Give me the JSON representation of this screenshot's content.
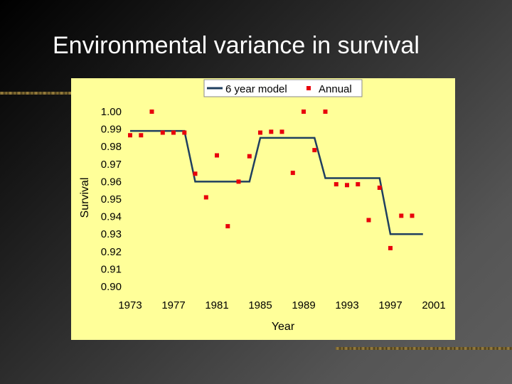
{
  "slide": {
    "title": "Environmental variance in survival"
  },
  "colors": {
    "panel_background": "#ffff99",
    "model_line": "#1f3f5f",
    "annual_marker": "#e8000b",
    "slide_background": "#2a2a2a",
    "title_text": "#ffffff"
  },
  "chart_data": {
    "type": "line",
    "title": "",
    "xlabel": "Year",
    "ylabel": "Survival",
    "xlim": [
      1973,
      2001
    ],
    "ylim": [
      0.9,
      1.0
    ],
    "x_ticks": [
      "1973",
      "1977",
      "1981",
      "1985",
      "1989",
      "1993",
      "1997",
      "2001"
    ],
    "y_ticks": [
      "1.00",
      "0.99",
      "0.98",
      "0.97",
      "0.96",
      "0.95",
      "0.94",
      "0.93",
      "0.92",
      "0.91",
      "0.90"
    ],
    "grid": false,
    "legend_position": "top",
    "series": [
      {
        "name": "6 year model",
        "kind": "line",
        "x": [
          1973,
          1978,
          1979,
          1984,
          1985,
          1990,
          1991,
          1996,
          1997,
          2000
        ],
        "y": [
          0.989,
          0.989,
          0.96,
          0.96,
          0.985,
          0.985,
          0.962,
          0.962,
          0.93,
          0.93
        ]
      },
      {
        "name": "Annual",
        "kind": "scatter",
        "x": [
          1973,
          1974,
          1975,
          1976,
          1977,
          1978,
          1979,
          1980,
          1981,
          1982,
          1983,
          1984,
          1985,
          1986,
          1987,
          1988,
          1989,
          1990,
          1991,
          1992,
          1993,
          1994,
          1995,
          1996,
          1997,
          1998,
          1999
        ],
        "y": [
          0.9865,
          0.9865,
          1.0,
          0.988,
          0.988,
          0.988,
          0.9645,
          0.951,
          0.975,
          0.9345,
          0.96,
          0.9745,
          0.988,
          0.9885,
          0.9885,
          0.965,
          1.0,
          0.978,
          1.0,
          0.9585,
          0.958,
          0.9585,
          0.938,
          0.9565,
          0.922,
          0.9405,
          0.9405
        ]
      }
    ]
  }
}
